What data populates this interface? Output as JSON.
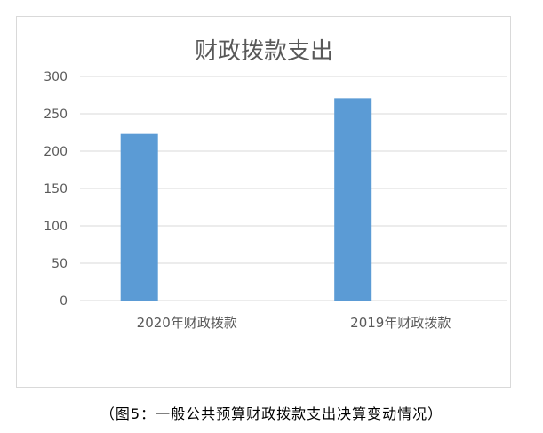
{
  "chart_data": {
    "type": "bar",
    "title": "财政拨款支出",
    "categories": [
      "2020年财政拨款",
      "2019年财政拨款"
    ],
    "values": [
      223,
      271
    ],
    "ylim": [
      0,
      300
    ],
    "yticks": [
      0,
      50,
      100,
      150,
      200,
      250,
      300
    ],
    "grid": true,
    "legend": "none",
    "bar_color": "#5b9bd5"
  },
  "caption": "（图5：一般公共预算财政拨款支出决算变动情况）"
}
